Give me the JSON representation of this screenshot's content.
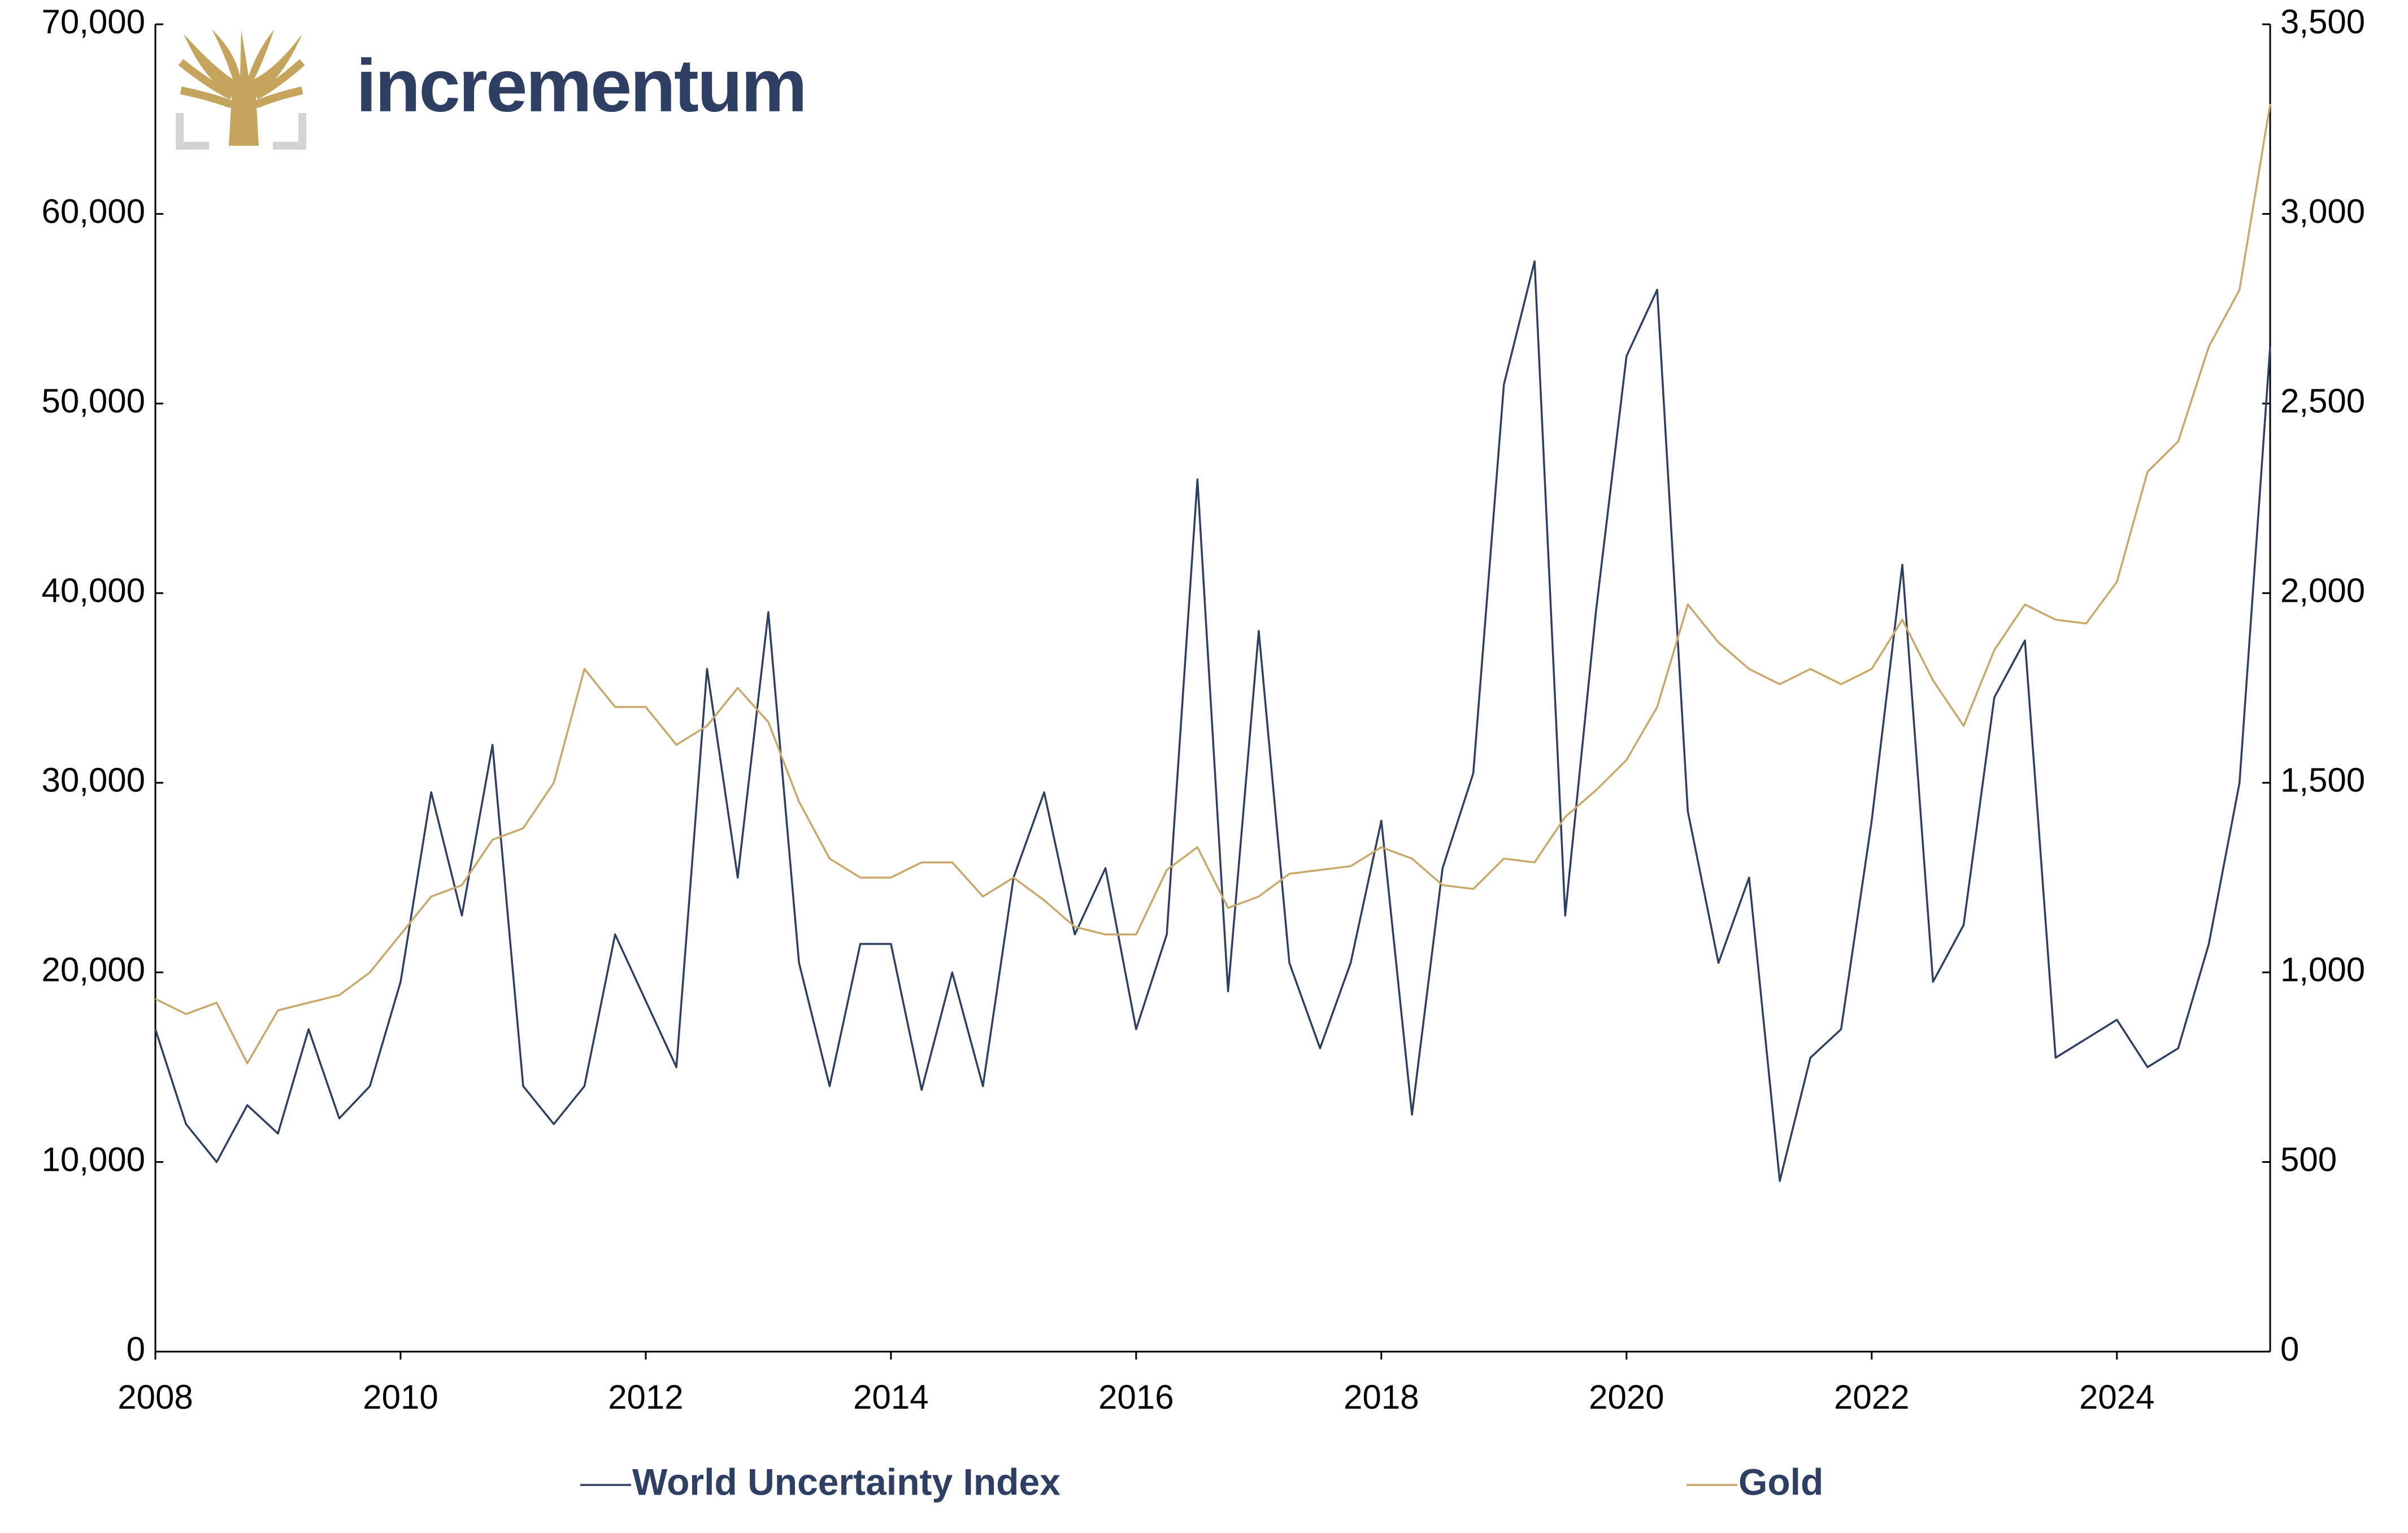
{
  "logo": "incrementum",
  "chart_data": {
    "type": "line",
    "x": [
      2008,
      2008.25,
      2008.5,
      2008.75,
      2009,
      2009.25,
      2009.5,
      2009.75,
      2010,
      2010.25,
      2010.5,
      2010.75,
      2011,
      2011.25,
      2011.5,
      2011.75,
      2012,
      2012.25,
      2012.5,
      2012.75,
      2013,
      2013.25,
      2013.5,
      2013.75,
      2014,
      2014.25,
      2014.5,
      2014.75,
      2015,
      2015.25,
      2015.5,
      2015.75,
      2016,
      2016.25,
      2016.5,
      2016.75,
      2017,
      2017.25,
      2017.5,
      2017.75,
      2018,
      2018.25,
      2018.5,
      2018.75,
      2019,
      2019.25,
      2019.5,
      2019.75,
      2020,
      2020.25,
      2020.5,
      2020.75,
      2021,
      2021.25,
      2021.5,
      2021.75,
      2022,
      2022.25,
      2022.5,
      2022.75,
      2023,
      2023.25,
      2023.5,
      2023.75,
      2024,
      2024.25,
      2024.5,
      2024.75,
      2025,
      2025.25
    ],
    "series": [
      {
        "name": "World Uncertainty Index",
        "color": "#2e3f63",
        "axis": "y",
        "values": [
          17000,
          12000,
          10000,
          13000,
          11500,
          17000,
          12300,
          14000,
          19500,
          29500,
          23000,
          32000,
          14000,
          12000,
          14000,
          22000,
          18500,
          15000,
          36000,
          25000,
          39000,
          20500,
          14000,
          21500,
          21500,
          13800,
          20000,
          14000,
          25000,
          29500,
          22000,
          25500,
          17000,
          22000,
          46000,
          19000,
          38000,
          20500,
          16000,
          20500,
          28000,
          12500,
          25500,
          30500,
          51000,
          57500,
          23000,
          39000,
          52500,
          56000,
          28500,
          20500,
          25000,
          9000,
          15500,
          17000,
          28000,
          41500,
          19500,
          22500,
          34500,
          37500,
          15500,
          16500,
          17500,
          15000,
          16000,
          21500,
          30000,
          53000
        ]
      },
      {
        "name": "Gold",
        "color": "#c9a96b",
        "axis": "y2",
        "values": [
          930,
          890,
          920,
          760,
          900,
          920,
          940,
          1000,
          1100,
          1200,
          1230,
          1350,
          1380,
          1500,
          1800,
          1700,
          1700,
          1600,
          1650,
          1750,
          1660,
          1450,
          1300,
          1250,
          1250,
          1290,
          1290,
          1200,
          1250,
          1190,
          1120,
          1100,
          1100,
          1270,
          1330,
          1170,
          1200,
          1260,
          1270,
          1280,
          1330,
          1300,
          1230,
          1220,
          1300,
          1290,
          1410,
          1480,
          1560,
          1700,
          1970,
          1870,
          1800,
          1760,
          1800,
          1760,
          1800,
          1930,
          1770,
          1650,
          1850,
          1970,
          1930,
          1920,
          2030,
          2320,
          2400,
          2650,
          2800,
          3290
        ]
      }
    ],
    "xlim": [
      2008,
      2025.25
    ],
    "xticks": [
      2008,
      2010,
      2012,
      2014,
      2016,
      2018,
      2020,
      2022,
      2024
    ],
    "ylim": [
      0,
      70000
    ],
    "yticks": [
      0,
      {
        "value": 10000,
        "label": "10,000"
      },
      {
        "value": 20000,
        "label": "20,000"
      },
      {
        "value": 30000,
        "label": "30,000"
      },
      {
        "value": 40000,
        "label": "40,000"
      },
      {
        "value": 50000,
        "label": "50,000"
      },
      {
        "value": 60000,
        "label": "60,000"
      },
      {
        "value": 70000,
        "label": "70,000"
      }
    ],
    "y2lim": [
      0,
      3500
    ],
    "y2ticks": [
      0,
      500,
      {
        "value": 1000,
        "label": "1,000"
      },
      {
        "value": 1500,
        "label": "1,500"
      },
      {
        "value": 2000,
        "label": "2,000"
      },
      {
        "value": 2500,
        "label": "2,500"
      },
      {
        "value": 3000,
        "label": "3,000"
      },
      {
        "value": 3500,
        "label": "3,500"
      }
    ],
    "grid": false
  }
}
